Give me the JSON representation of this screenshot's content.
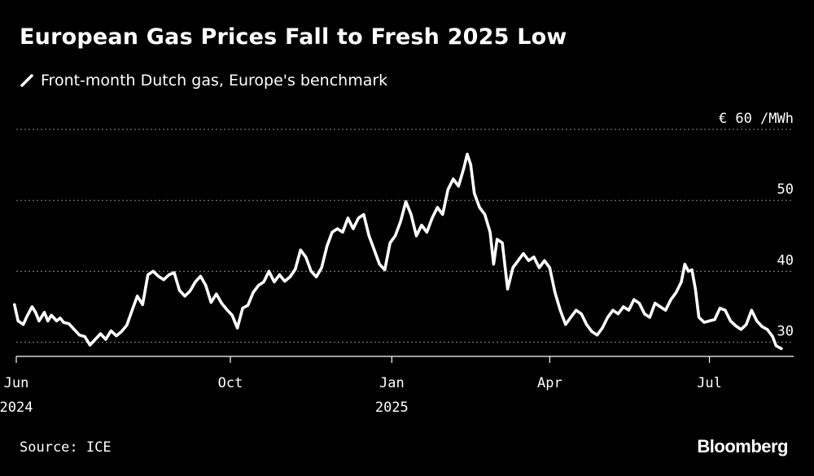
{
  "title": "European Gas Prices Fall to Fresh 2025 Low",
  "source": "Source: ICE",
  "brand": "Bloomberg",
  "colors": {
    "background": "#000000",
    "line": "#ffffff",
    "grid": "#8a8a8a"
  },
  "chart_data": {
    "type": "line",
    "title": "European Gas Prices Fall to Fresh 2025 Low",
    "ylabel": "€ 60 /MWh",
    "y_unit": "€ /MWh",
    "ylim": [
      28,
      60
    ],
    "yticks": [
      30,
      40,
      50,
      60
    ],
    "ytick_labels": [
      "30",
      "40",
      "50",
      "€ 60 /MWh"
    ],
    "ygrid": true,
    "xlim": [
      "2024-06-01",
      "2025-08-18"
    ],
    "xticks": [
      {
        "date": "2024-06-01",
        "label": "Jun",
        "sublabel": "2024"
      },
      {
        "date": "2024-10-01",
        "label": "Oct",
        "sublabel": ""
      },
      {
        "date": "2025-01-01",
        "label": "Jan",
        "sublabel": "2025"
      },
      {
        "date": "2025-04-01",
        "label": "Apr",
        "sublabel": ""
      },
      {
        "date": "2025-07-01",
        "label": "Jul",
        "sublabel": ""
      }
    ],
    "series": [
      {
        "name": "Front-month Dutch gas, Europe's benchmark",
        "color": "#ffffff",
        "points": [
          [
            "2024-05-31",
            35.3
          ],
          [
            "2024-06-02",
            33.0
          ],
          [
            "2024-06-05",
            32.5
          ],
          [
            "2024-06-07",
            33.6
          ],
          [
            "2024-06-10",
            35.0
          ],
          [
            "2024-06-12",
            34.2
          ],
          [
            "2024-06-14",
            33.0
          ],
          [
            "2024-06-17",
            34.2
          ],
          [
            "2024-06-19",
            33.0
          ],
          [
            "2024-06-21",
            33.8
          ],
          [
            "2024-06-24",
            33.0
          ],
          [
            "2024-06-26",
            33.4
          ],
          [
            "2024-06-28",
            32.8
          ],
          [
            "2024-07-01",
            32.6
          ],
          [
            "2024-07-04",
            31.8
          ],
          [
            "2024-07-07",
            31.0
          ],
          [
            "2024-07-10",
            30.8
          ],
          [
            "2024-07-13",
            29.6
          ],
          [
            "2024-07-16",
            30.4
          ],
          [
            "2024-07-19",
            31.2
          ],
          [
            "2024-07-22",
            30.4
          ],
          [
            "2024-07-25",
            31.6
          ],
          [
            "2024-07-28",
            30.9
          ],
          [
            "2024-07-31",
            31.5
          ],
          [
            "2024-08-03",
            32.4
          ],
          [
            "2024-08-06",
            34.5
          ],
          [
            "2024-08-09",
            36.5
          ],
          [
            "2024-08-12",
            35.3
          ],
          [
            "2024-08-15",
            39.5
          ],
          [
            "2024-08-18",
            40.0
          ],
          [
            "2024-08-21",
            39.3
          ],
          [
            "2024-08-24",
            38.8
          ],
          [
            "2024-08-27",
            39.5
          ],
          [
            "2024-08-30",
            39.8
          ],
          [
            "2024-09-02",
            37.3
          ],
          [
            "2024-09-05",
            36.5
          ],
          [
            "2024-09-08",
            37.2
          ],
          [
            "2024-09-11",
            38.5
          ],
          [
            "2024-09-14",
            39.3
          ],
          [
            "2024-09-17",
            38.0
          ],
          [
            "2024-09-20",
            35.6
          ],
          [
            "2024-09-23",
            36.8
          ],
          [
            "2024-09-26",
            35.5
          ],
          [
            "2024-09-29",
            34.6
          ],
          [
            "2024-10-02",
            33.8
          ],
          [
            "2024-10-05",
            32.0
          ],
          [
            "2024-10-08",
            34.8
          ],
          [
            "2024-10-11",
            35.2
          ],
          [
            "2024-10-14",
            37.0
          ],
          [
            "2024-10-17",
            38.0
          ],
          [
            "2024-10-20",
            38.5
          ],
          [
            "2024-10-23",
            40.0
          ],
          [
            "2024-10-26",
            38.5
          ],
          [
            "2024-10-29",
            39.5
          ],
          [
            "2024-11-01",
            38.6
          ],
          [
            "2024-11-04",
            39.2
          ],
          [
            "2024-11-07",
            40.3
          ],
          [
            "2024-11-10",
            43.0
          ],
          [
            "2024-11-13",
            42.0
          ],
          [
            "2024-11-16",
            40.0
          ],
          [
            "2024-11-19",
            39.2
          ],
          [
            "2024-11-22",
            40.5
          ],
          [
            "2024-11-25",
            43.5
          ],
          [
            "2024-11-28",
            45.5
          ],
          [
            "2024-12-01",
            46.0
          ],
          [
            "2024-12-04",
            45.5
          ],
          [
            "2024-12-07",
            47.5
          ],
          [
            "2024-12-10",
            46.0
          ],
          [
            "2024-12-13",
            47.5
          ],
          [
            "2024-12-16",
            48.0
          ],
          [
            "2024-12-19",
            45.0
          ],
          [
            "2024-12-22",
            43.0
          ],
          [
            "2024-12-25",
            41.0
          ],
          [
            "2024-12-28",
            40.2
          ],
          [
            "2024-12-31",
            44.0
          ],
          [
            "2025-01-03",
            45.0
          ],
          [
            "2025-01-06",
            47.0
          ],
          [
            "2025-01-09",
            49.8
          ],
          [
            "2025-01-12",
            48.0
          ],
          [
            "2025-01-15",
            45.0
          ],
          [
            "2025-01-18",
            46.5
          ],
          [
            "2025-01-21",
            45.5
          ],
          [
            "2025-01-24",
            47.5
          ],
          [
            "2025-01-27",
            49.0
          ],
          [
            "2025-01-30",
            48.0
          ],
          [
            "2025-02-02",
            51.5
          ],
          [
            "2025-02-05",
            53.0
          ],
          [
            "2025-02-08",
            52.0
          ],
          [
            "2025-02-11",
            54.5
          ],
          [
            "2025-02-13",
            56.5
          ],
          [
            "2025-02-15",
            55.0
          ],
          [
            "2025-02-17",
            51.0
          ],
          [
            "2025-02-20",
            49.0
          ],
          [
            "2025-02-23",
            48.0
          ],
          [
            "2025-02-26",
            45.5
          ],
          [
            "2025-02-28",
            41.0
          ],
          [
            "2025-03-02",
            44.5
          ],
          [
            "2025-03-05",
            44.0
          ],
          [
            "2025-03-08",
            37.5
          ],
          [
            "2025-03-11",
            40.5
          ],
          [
            "2025-03-14",
            41.5
          ],
          [
            "2025-03-17",
            42.5
          ],
          [
            "2025-03-20",
            41.5
          ],
          [
            "2025-03-23",
            42.0
          ],
          [
            "2025-03-26",
            40.5
          ],
          [
            "2025-03-29",
            41.5
          ],
          [
            "2025-04-01",
            40.5
          ],
          [
            "2025-04-04",
            37.0
          ],
          [
            "2025-04-07",
            34.5
          ],
          [
            "2025-04-10",
            32.5
          ],
          [
            "2025-04-13",
            33.5
          ],
          [
            "2025-04-16",
            34.5
          ],
          [
            "2025-04-19",
            34.0
          ],
          [
            "2025-04-22",
            32.5
          ],
          [
            "2025-04-25",
            31.5
          ],
          [
            "2025-04-28",
            31.0
          ],
          [
            "2025-05-01",
            32.0
          ],
          [
            "2025-05-04",
            33.5
          ],
          [
            "2025-05-07",
            34.5
          ],
          [
            "2025-05-10",
            34.0
          ],
          [
            "2025-05-13",
            35.0
          ],
          [
            "2025-05-16",
            34.5
          ],
          [
            "2025-05-19",
            36.0
          ],
          [
            "2025-05-22",
            35.5
          ],
          [
            "2025-05-25",
            34.0
          ],
          [
            "2025-05-28",
            33.5
          ],
          [
            "2025-05-31",
            35.5
          ],
          [
            "2025-06-03",
            35.0
          ],
          [
            "2025-06-06",
            34.5
          ],
          [
            "2025-06-09",
            36.0
          ],
          [
            "2025-06-12",
            37.0
          ],
          [
            "2025-06-15",
            38.5
          ],
          [
            "2025-06-17",
            41.0
          ],
          [
            "2025-06-19",
            40.0
          ],
          [
            "2025-06-21",
            40.2
          ],
          [
            "2025-06-23",
            37.5
          ],
          [
            "2025-06-25",
            33.5
          ],
          [
            "2025-06-28",
            32.8
          ],
          [
            "2025-07-01",
            33.0
          ],
          [
            "2025-07-04",
            33.2
          ],
          [
            "2025-07-07",
            34.8
          ],
          [
            "2025-07-10",
            34.5
          ],
          [
            "2025-07-13",
            33.0
          ],
          [
            "2025-07-16",
            32.3
          ],
          [
            "2025-07-19",
            31.8
          ],
          [
            "2025-07-22",
            32.5
          ],
          [
            "2025-07-25",
            34.5
          ],
          [
            "2025-07-28",
            33.0
          ],
          [
            "2025-07-31",
            32.2
          ],
          [
            "2025-08-03",
            31.8
          ],
          [
            "2025-08-06",
            30.8
          ],
          [
            "2025-08-08",
            29.5
          ],
          [
            "2025-08-11",
            29.1
          ]
        ]
      }
    ]
  }
}
